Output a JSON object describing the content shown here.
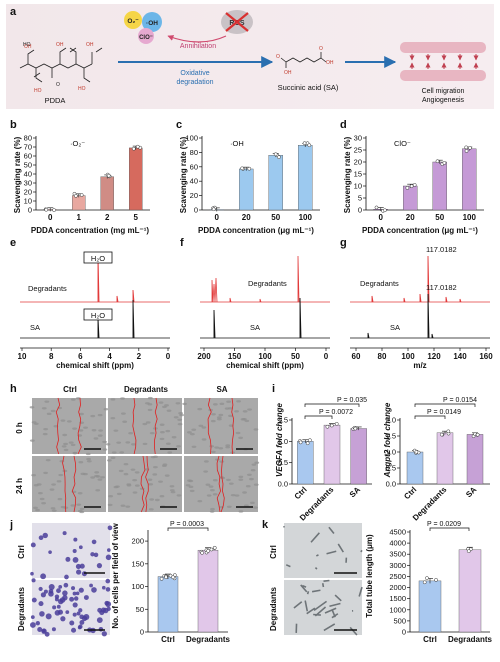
{
  "panel_a": {
    "letter": "a",
    "polymer": "PDDA",
    "ros_o2": "O₂⁻",
    "ros_oh": "·OH",
    "ros_clo": "ClO⁻",
    "ros_label": "ROS",
    "annihilation": "Annihilation",
    "oxidative": "Oxidative",
    "degradation": "degradation",
    "product": "Succinic acid (SA)",
    "outcome1": "Cell migration",
    "outcome2": "Angiogenesis"
  },
  "bar_panels": {
    "b": {
      "letter": "b",
      "ylabel": "Scavenging rate (%)",
      "xlabel": "PDDA concentration (mg mL⁻¹)",
      "species": "·O₂⁻"
    },
    "c": {
      "letter": "c",
      "ylabel": "Scavenging rate (%)",
      "xlabel": "PDDA concentration (μg mL⁻¹)",
      "species": "·OH"
    },
    "d": {
      "letter": "d",
      "ylabel": "Scavenging rate (%)",
      "xlabel": "PDDA concentration (μg mL⁻¹)",
      "species": "ClO⁻"
    }
  },
  "spectra": {
    "e": {
      "letter": "e",
      "top": "Degradants",
      "bottom": "SA",
      "peak": "H₂O",
      "xlabel": "chemical shift (ppm)",
      "ticks": [
        "10",
        "8",
        "6",
        "4",
        "2",
        "0"
      ]
    },
    "f": {
      "letter": "f",
      "top": "Degradants",
      "bottom": "SA",
      "xlabel": "chemical shift (ppm)",
      "ticks": [
        "200",
        "150",
        "100",
        "50",
        "0"
      ]
    },
    "g": {
      "letter": "g",
      "top": "Degradants",
      "bottom": "SA",
      "mz_top": "117.0182",
      "mz_bottom": "117.0182",
      "xlabel": "m/z",
      "ticks": [
        "60",
        "80",
        "100",
        "120",
        "140",
        "160"
      ]
    }
  },
  "panel_h": {
    "letter": "h",
    "cols": [
      "Ctrl",
      "Degradants",
      "SA"
    ],
    "rows": [
      "0 h",
      "24 h"
    ]
  },
  "panel_i": {
    "letter": "i",
    "left": {
      "ylabel": "VEGFA fold change",
      "p_top": "P = 0.035",
      "p_bottom": "P = 0.0072"
    },
    "right": {
      "ylabel": "Angpt2 fold change",
      "p_top": "P = 0.0154",
      "p_bottom": "P = 0.0149"
    }
  },
  "panel_j": {
    "letter": "j",
    "rows": [
      "Ctrl",
      "Degradants"
    ],
    "ylabel": "No. of cells per field of view",
    "p": "P = 0.0003"
  },
  "panel_k": {
    "letter": "k",
    "rows": [
      "Ctrl",
      "Degradants"
    ],
    "ylabel": "Total tube length (μm)",
    "p": "P = 0.0209"
  },
  "chart_data": [
    {
      "type": "bar",
      "panel": "b",
      "species": "·O₂⁻",
      "categories": [
        "0",
        "1",
        "2",
        "5"
      ],
      "values": [
        0.5,
        16,
        37,
        69
      ],
      "ylim": [
        0,
        80
      ],
      "yticks": [
        0,
        10,
        20,
        30,
        40,
        50,
        60,
        70,
        80
      ],
      "ylabel": "Scavenging rate (%)",
      "xlabel": "PDDA concentration (mg mL⁻¹)",
      "colors": [
        "#c0504d",
        "#e8a8a0",
        "#d08c85",
        "#d66a5e"
      ]
    },
    {
      "type": "bar",
      "panel": "c",
      "species": "·OH",
      "categories": [
        "0",
        "20",
        "50",
        "100"
      ],
      "values": [
        0.5,
        57,
        76,
        90
      ],
      "ylim": [
        0,
        100
      ],
      "yticks": [
        0,
        20,
        40,
        60,
        80,
        100
      ],
      "ylabel": "Scavenging rate (%)",
      "xlabel": "PDDA concentration (μg mL⁻¹)",
      "colors": [
        "#4a90d9",
        "#9cc9ef",
        "#9cc9ef",
        "#9cc9ef"
      ]
    },
    {
      "type": "bar",
      "panel": "d",
      "species": "ClO⁻",
      "categories": [
        "0",
        "20",
        "50",
        "100"
      ],
      "values": [
        0.3,
        10,
        20,
        25.5
      ],
      "ylim": [
        0,
        30
      ],
      "yticks": [
        0,
        5,
        10,
        15,
        20,
        25,
        30
      ],
      "ylabel": "Scavenging rate (%)",
      "xlabel": "PDDA concentration (μg mL⁻¹)",
      "colors": [
        "#9b59b6",
        "#c59ad6",
        "#c59ad6",
        "#c59ad6"
      ]
    },
    {
      "type": "bar",
      "panel": "i-left",
      "categories": [
        "Ctrl",
        "Degradants",
        "SA"
      ],
      "values": [
        1.0,
        1.38,
        1.3
      ],
      "ylim": [
        0.0,
        1.5
      ],
      "yticks": [
        0.0,
        0.5,
        1.0,
        1.5
      ],
      "ylabel": "VEGFA fold change",
      "colors": [
        "#a9c8ef",
        "#e1c7e9",
        "#c6a1d6"
      ]
    },
    {
      "type": "bar",
      "panel": "i-right",
      "categories": [
        "Ctrl",
        "Degradants",
        "SA"
      ],
      "values": [
        1.0,
        1.6,
        1.55
      ],
      "ylim": [
        0.0,
        2.0
      ],
      "yticks": [
        0.0,
        0.5,
        1.0,
        1.5,
        2.0
      ],
      "ylabel": "Angpt2 fold change",
      "colors": [
        "#a9c8ef",
        "#e1c7e9",
        "#c6a1d6"
      ]
    },
    {
      "type": "bar",
      "panel": "j",
      "categories": [
        "Ctrl",
        "Degradants"
      ],
      "values": [
        122,
        180
      ],
      "ylim": [
        0,
        220
      ],
      "yticks": [
        0,
        50,
        100,
        150,
        200
      ],
      "ylabel": "No. of cells per field of view",
      "colors": [
        "#a9c8ef",
        "#e1c7e9"
      ]
    },
    {
      "type": "bar",
      "panel": "k",
      "categories": [
        "Ctrl",
        "Degradants"
      ],
      "values": [
        2300,
        3700
      ],
      "ylim": [
        0,
        4500
      ],
      "yticks": [
        0,
        500,
        1000,
        1500,
        2000,
        2500,
        3000,
        3500,
        4000,
        4500
      ],
      "ylabel": "Total tube length (μm)",
      "colors": [
        "#a9c8ef",
        "#e1c7e9"
      ]
    }
  ]
}
